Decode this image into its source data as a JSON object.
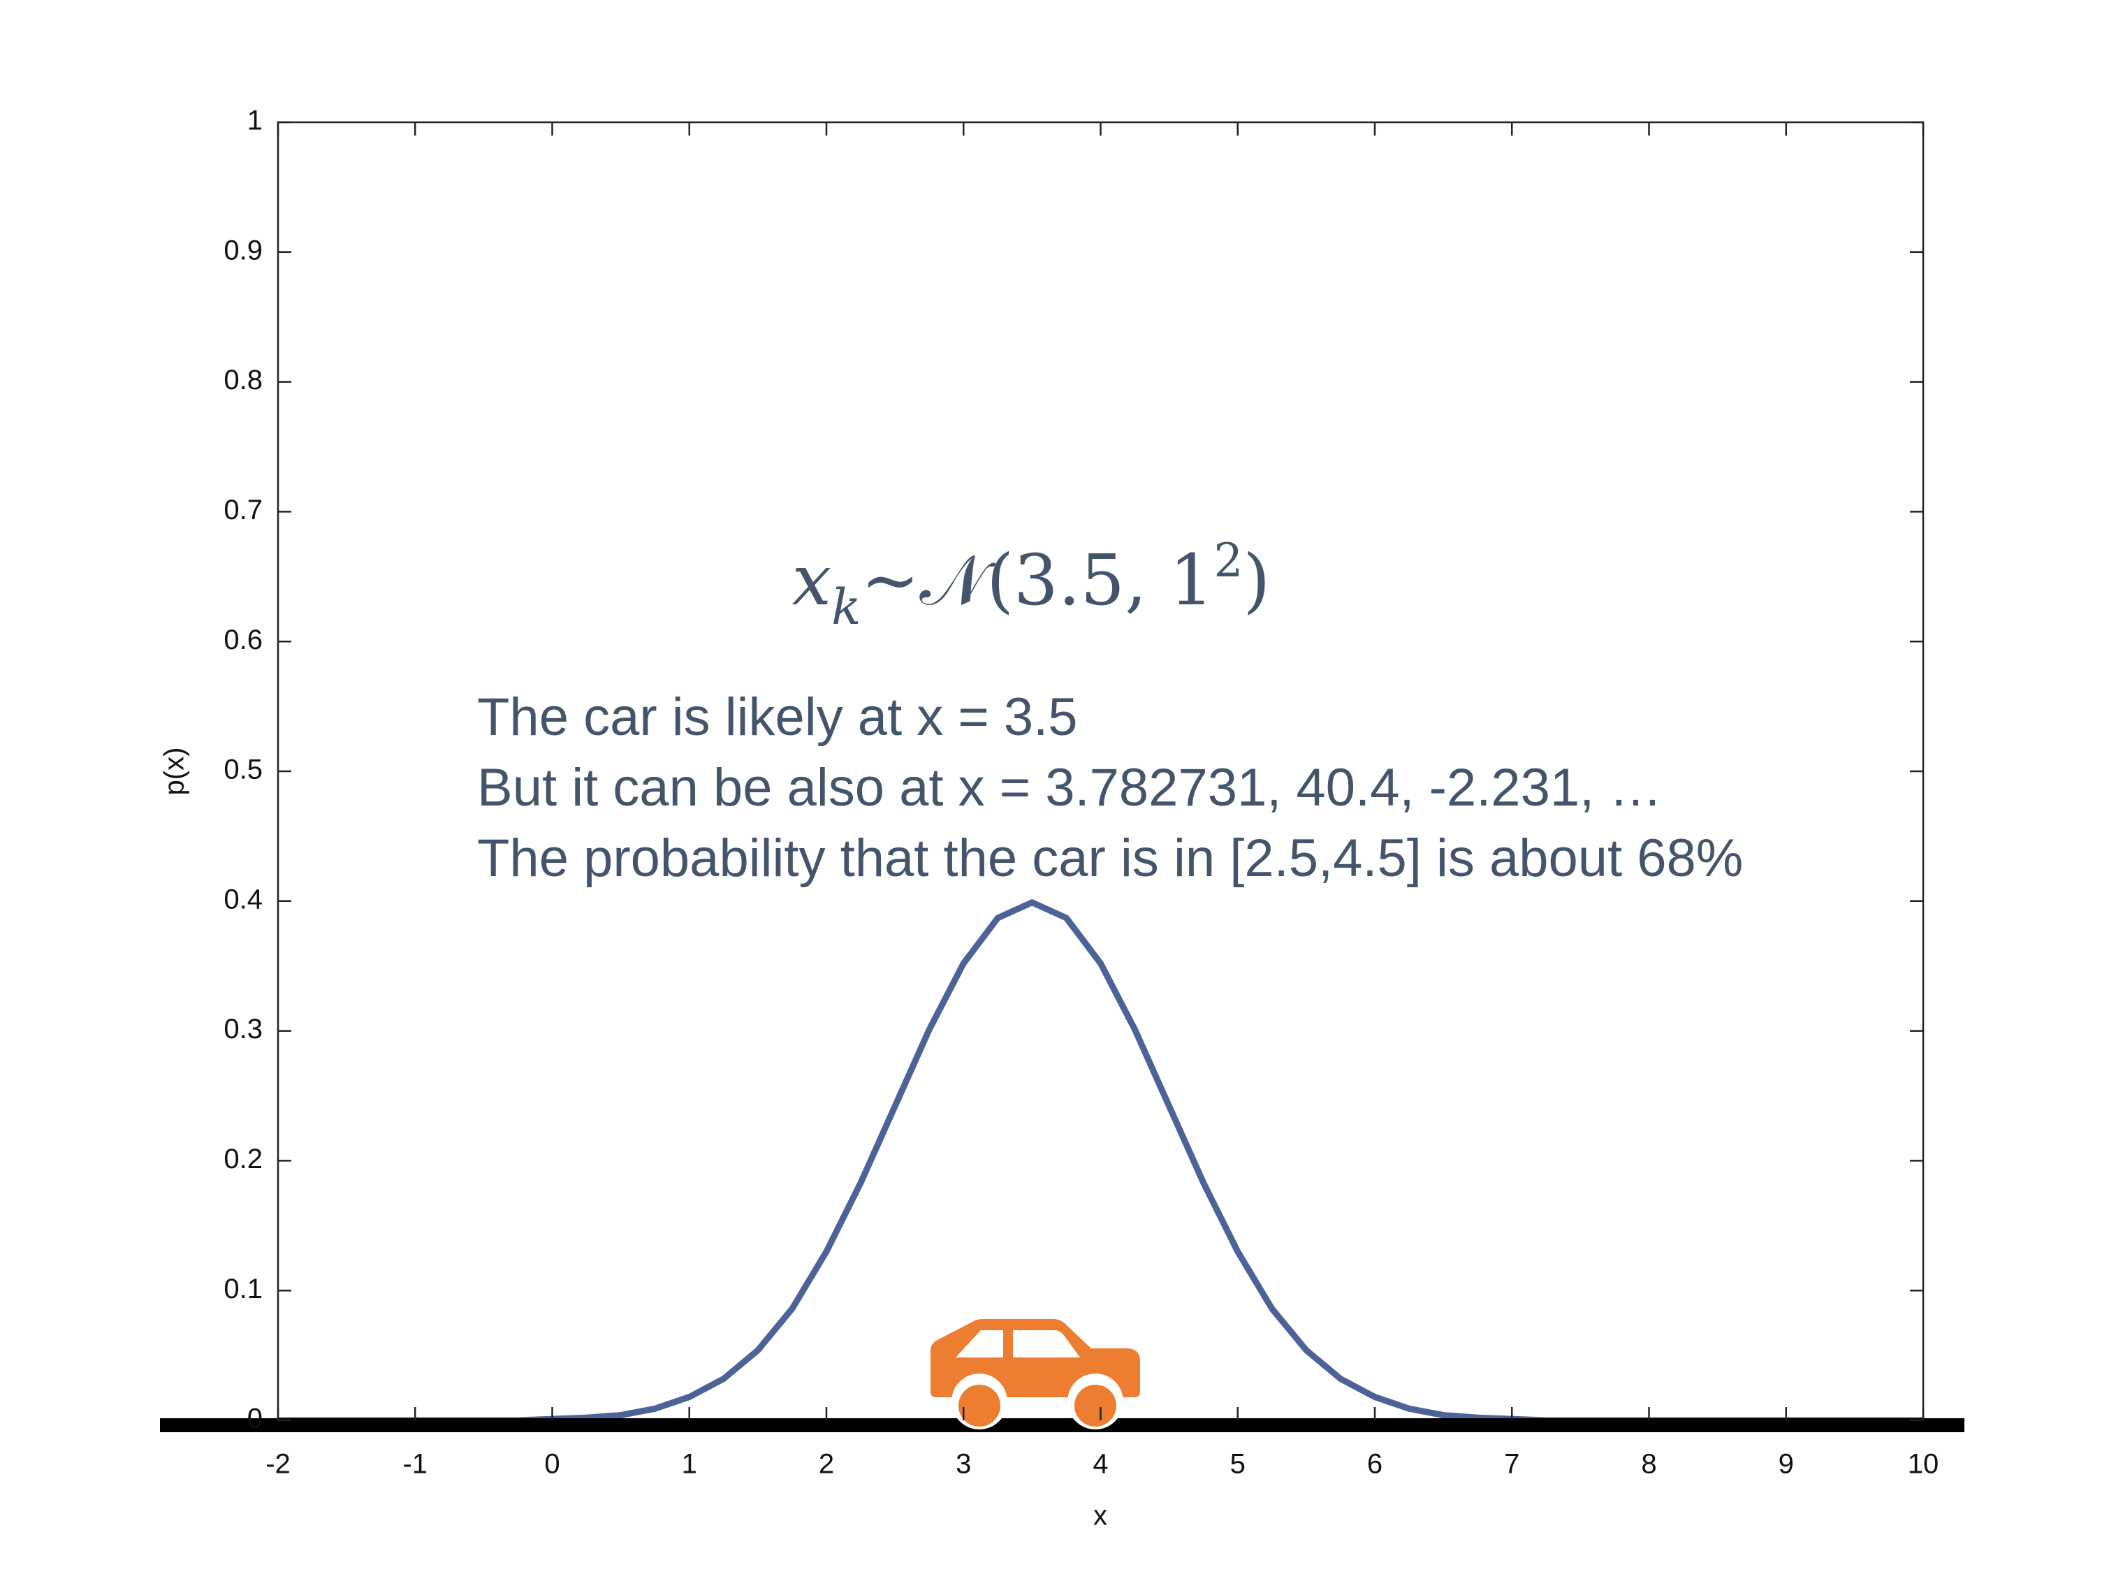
{
  "chart_data": {
    "type": "line",
    "xlabel": "x",
    "ylabel": "p(x)",
    "x": [
      -2,
      -1.75,
      -1.5,
      -1.25,
      -1,
      -0.75,
      -0.5,
      -0.25,
      0,
      0.25,
      0.5,
      0.75,
      1,
      1.25,
      1.5,
      1.75,
      2,
      2.25,
      2.5,
      2.75,
      3,
      3.25,
      3.5,
      3.75,
      4,
      4.25,
      4.5,
      4.75,
      5,
      5.25,
      5.5,
      5.75,
      6,
      6.25,
      6.5,
      6.75,
      7,
      7.25,
      7.5,
      7.75,
      8,
      8.25,
      8.5,
      8.75,
      9,
      9.25,
      9.5,
      9.75,
      10
    ],
    "values": [
      0,
      0,
      0,
      0,
      0,
      0,
      0,
      0,
      0.001,
      0.002,
      0.004,
      0.009,
      0.018,
      0.032,
      0.054,
      0.086,
      0.13,
      0.183,
      0.242,
      0.301,
      0.352,
      0.387,
      0.399,
      0.387,
      0.352,
      0.301,
      0.242,
      0.183,
      0.13,
      0.086,
      0.054,
      0.032,
      0.018,
      0.009,
      0.004,
      0.002,
      0.001,
      0,
      0,
      0,
      0,
      0,
      0,
      0,
      0,
      0,
      0,
      0,
      0
    ],
    "color": "#4d6298",
    "xlim": [
      -2,
      10
    ],
    "ylim": [
      0,
      1
    ],
    "xticks": [
      -2,
      -1,
      0,
      1,
      2,
      3,
      4,
      5,
      6,
      7,
      8,
      9,
      10
    ],
    "yticks": [
      0,
      0.1,
      0.2,
      0.3,
      0.4,
      0.5,
      0.6,
      0.7,
      0.8,
      0.9,
      1
    ],
    "annotations": {
      "formula": {
        "var": "x",
        "sub": "k",
        "body": "~𝒩(3.5, 1",
        "sup": "2",
        "close": ")"
      },
      "lines": [
        "The car is likely at x = 3.5",
        "But it can be also at x = 3.782731, 40.4, -2.231, …",
        "The probability that the car is in [2.5,4.5] is about 68%"
      ]
    }
  }
}
